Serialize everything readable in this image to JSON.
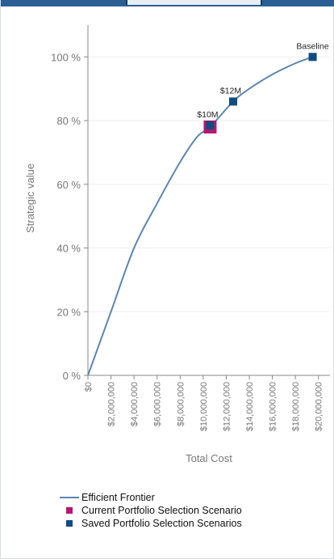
{
  "colors": {
    "frontier": "#5b86b3",
    "current": "#b5176e",
    "saved": "#0f4c81",
    "axis": "#888888",
    "grid": "#eeeeee",
    "tick_text": "#777777"
  },
  "chart_data": {
    "type": "line",
    "xlabel": "Total Cost",
    "ylabel": "Strategic value",
    "xlim": [
      0,
      21000000
    ],
    "ylim": [
      0,
      110
    ],
    "x_ticks": [
      0,
      2000000,
      4000000,
      6000000,
      8000000,
      10000000,
      12000000,
      14000000,
      16000000,
      18000000,
      20000000
    ],
    "x_tick_labels": [
      "$0",
      "$2,000,000",
      "$4,000,000",
      "$6,000,000",
      "$8,000,000",
      "$10,000,000",
      "$12,000,000",
      "$14,000,000",
      "$16,000,000",
      "$18,000,000",
      "$20,000,000"
    ],
    "y_ticks": [
      0,
      20,
      40,
      60,
      80,
      100
    ],
    "y_tick_labels": [
      "0 %",
      "20 %",
      "40 %",
      "60 %",
      "80 %",
      "100 %"
    ],
    "grid": true,
    "legend_position": "bottom",
    "series": [
      {
        "name": "Efficient Frontier",
        "type": "line",
        "x": [
          0,
          2000000,
          4000000,
          6000000,
          8000000,
          9500000,
          10600000,
          12600000,
          14000000,
          16000000,
          18000000,
          19500000
        ],
        "y": [
          0,
          20,
          40,
          54,
          67,
          75,
          78,
          86,
          90,
          94.5,
          98,
          100
        ]
      },
      {
        "name": "Current Portfolio Selection Scenario",
        "type": "point",
        "points": [
          {
            "x": 10600000,
            "y": 78
          }
        ]
      },
      {
        "name": "Saved Portfolio Selection Scenarios",
        "type": "point",
        "points": [
          {
            "x": 10600000,
            "y": 78.5,
            "label": "$10M"
          },
          {
            "x": 12600000,
            "y": 86,
            "label": "$12M"
          },
          {
            "x": 19500000,
            "y": 100,
            "label": "Baseline"
          }
        ]
      }
    ]
  }
}
